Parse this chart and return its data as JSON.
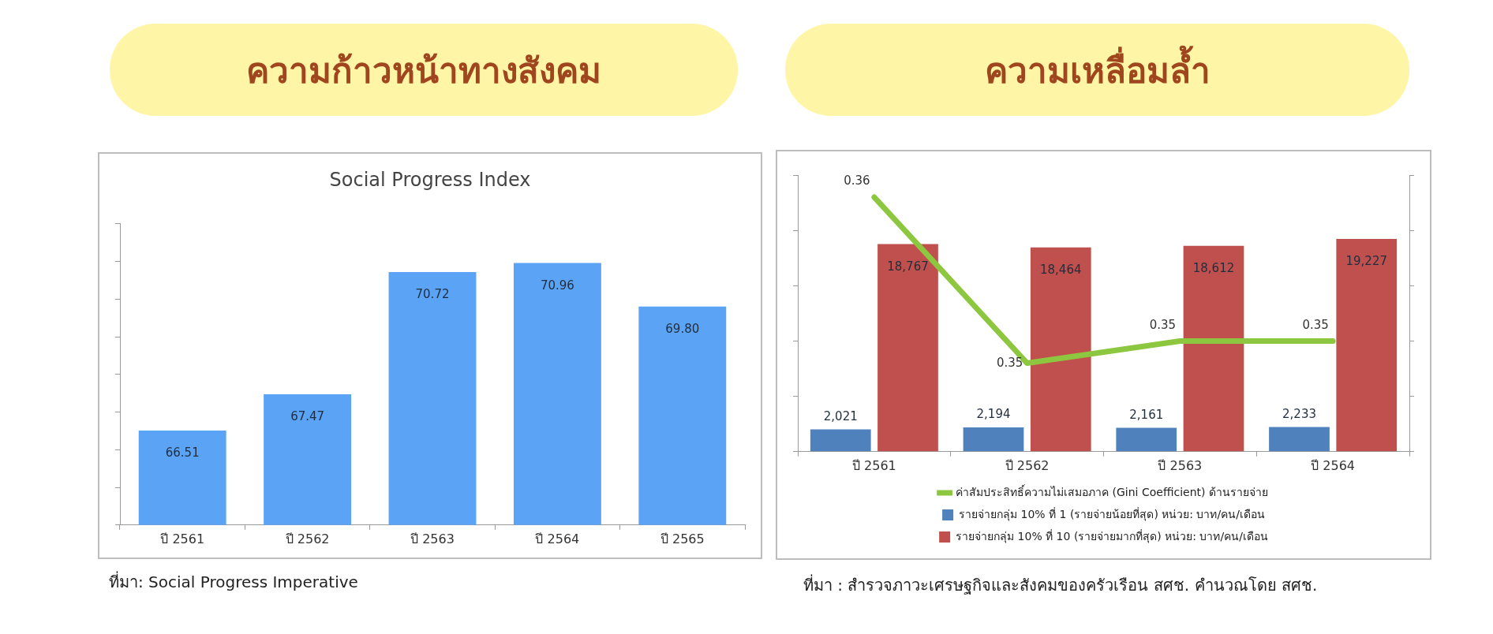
{
  "chart_data": [
    {
      "type": "bar",
      "title": "ความก้าวหน้าทางสังคม",
      "subtitle": "Social Progress Index",
      "categories": [
        "ปี 2561",
        "ปี 2562",
        "ปี 2563",
        "ปี 2564",
        "ปี 2565"
      ],
      "values": [
        66.51,
        67.47,
        70.72,
        70.96,
        69.8
      ],
      "value_labels": [
        "66.51",
        "67.47",
        "70.72",
        "70.96",
        "69.80"
      ],
      "color": "#5ba3f5",
      "ylim": [
        64,
        72
      ],
      "yticks": [
        {
          "value": 64,
          "label": null
        },
        {
          "value": 65,
          "label": null
        },
        {
          "value": 66,
          "label": null
        },
        {
          "value": 67,
          "label": null
        },
        {
          "value": 68,
          "label": null
        },
        {
          "value": 69,
          "label": null
        },
        {
          "value": 70,
          "label": null
        },
        {
          "value": 71,
          "label": null
        },
        {
          "value": 72,
          "label": null
        }
      ],
      "tick_labels": "x",
      "annotations": [
        "ที่มา: Social Progress Imperative"
      ]
    },
    {
      "type": "bar",
      "title": "ความเหลื่อมล้ำ",
      "categories": [
        "ปี 2561",
        "ปี 2562",
        "ปี 2563",
        "ปี 2564"
      ],
      "series": [
        {
          "name": "รายจ่ายกลุ่ม 10% ที่ 1 (รายจ่ายน้อยที่สุด) หน่วย: บาท/คน/เดือน",
          "color": "#4f81bd",
          "values": [
            2021,
            2194,
            2161,
            2233
          ],
          "value_labels": [
            "2,021",
            "2,194",
            "2,161",
            "2,233"
          ]
        },
        {
          "name": "รายจ่ายกลุ่ม 10% ที่ 10 (รายจ่ายมากที่สุด) หน่วย: บาท/คน/เดือน",
          "color": "#c0504d",
          "values": [
            18767,
            18464,
            18612,
            19227
          ],
          "value_labels": [
            "18,767",
            "18,464",
            "18,612",
            "19,227"
          ]
        },
        {
          "name": "ค่าสัมประสิทธิ์ความไม่เสมอภาค (Gini Coefficient) ด้านรายจ่าย",
          "type": "line",
          "axis": "y2",
          "color": "#8dc63f",
          "values": [
            0.363,
            0.348,
            0.35,
            0.35
          ],
          "value_labels": [
            "0.36",
            "0.35",
            "0.35",
            "0.35"
          ]
        }
      ],
      "ylim": [
        0,
        25000
      ],
      "yticks": [
        {
          "value": 0,
          "label": null
        },
        {
          "value": 5000,
          "label": null
        },
        {
          "value": 10000,
          "label": null
        },
        {
          "value": 15000,
          "label": null
        },
        {
          "value": 20000,
          "label": null
        },
        {
          "value": 25000,
          "label": null
        }
      ],
      "y2lim": [
        0.34,
        0.365
      ],
      "y2ticks": [
        {
          "value": 0.34,
          "label": null
        },
        {
          "value": 0.345,
          "label": null
        },
        {
          "value": 0.35,
          "label": null
        },
        {
          "value": 0.355,
          "label": null
        },
        {
          "value": 0.36,
          "label": null
        },
        {
          "value": 0.365,
          "label": null
        }
      ],
      "marker": "none",
      "legend": "bottom",
      "tick_labels": "x",
      "annotations": [
        "ที่มา : สำรวจภาวะเศรษฐกิจและสังคมของครัวเรือน สศช. คำนวณโดย สศช."
      ]
    }
  ]
}
